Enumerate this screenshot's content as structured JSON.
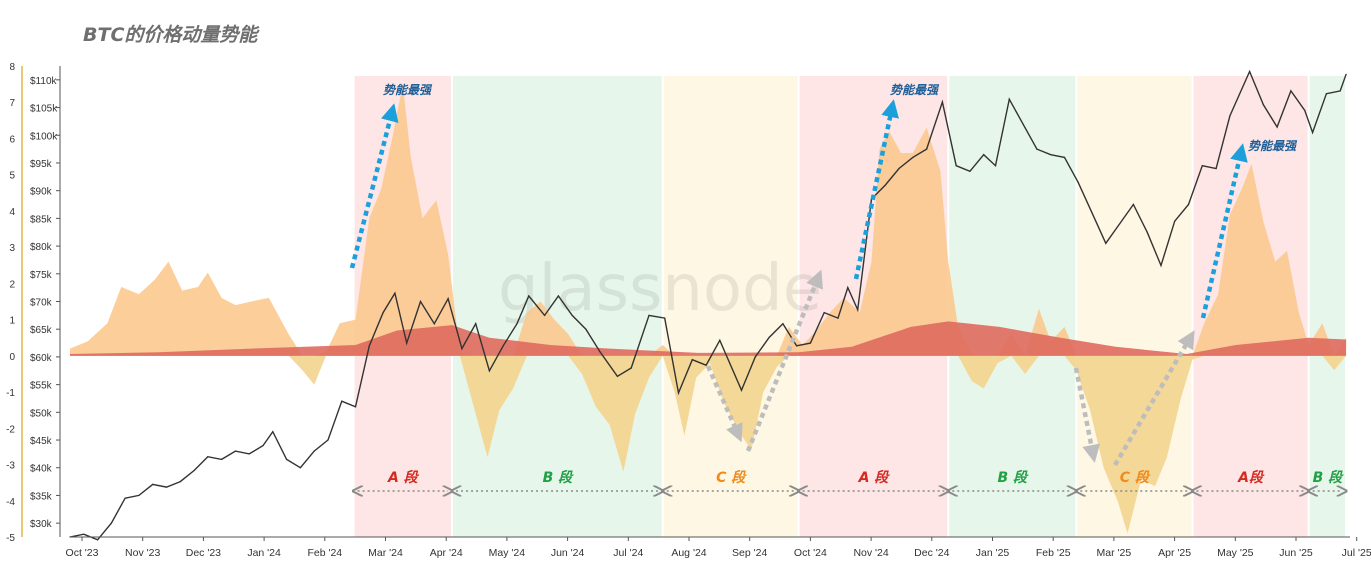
{
  "title": "BTC的价格动量势能",
  "watermark": "glassnode",
  "colors": {
    "price_line": "#333333",
    "momentum_positive_fill": "#fbc98f",
    "momentum_negative_fill": "#f3d48e",
    "baseline_fill": "#df6a5e",
    "phase_A_bg": "#fde6e5",
    "phase_B_bg": "#e7f6ea",
    "phase_C_bg": "#fef7e3",
    "label_A": "#d42a20",
    "label_B": "#21a045",
    "label_C": "#ef8a1b",
    "arrow_up": "#1ba0dc",
    "arrow_gray": "#bdbdbd",
    "annotation_text": "#1f5f99",
    "right_axis_tick": "#e8c97a"
  },
  "chart_data": {
    "type": "area",
    "x_ticks": [
      "Oct '23",
      "Nov '23",
      "Dec '23",
      "Jan '24",
      "Feb '24",
      "Mar '24",
      "Apr '24",
      "May '24",
      "Jun '24",
      "Jul '24",
      "Aug '24",
      "Sep '24",
      "Oct '24",
      "Nov '24",
      "Dec '24",
      "Jan '25",
      "Feb '25",
      "Mar '25",
      "Apr '25",
      "May '25",
      "Jun '25",
      "Jul '25"
    ],
    "y_left_ticks": [
      "8",
      "7",
      "6",
      "5",
      "4",
      "3",
      "2",
      "1",
      "0",
      "-1",
      "-2",
      "-3",
      "-4",
      "-5"
    ],
    "y_left_range": [
      -5,
      8
    ],
    "y_right_ticks": [
      "$110k",
      "$105k",
      "$100k",
      "$95k",
      "$90k",
      "$85k",
      "$80k",
      "$75k",
      "$70k",
      "$65k",
      "$60k",
      "$55k",
      "$50k",
      "$45k",
      "$40k",
      "$35k",
      "$30k"
    ],
    "y_right_range": [
      27500,
      112500
    ],
    "annotations": [
      "势能最强",
      "势能最强",
      "势能最强"
    ],
    "phases": [
      {
        "label": "A 段",
        "type": "A",
        "start": "2024-02-22",
        "end": "2024-04-12"
      },
      {
        "label": "B 段",
        "type": "B",
        "start": "2024-04-12",
        "end": "2024-07-28"
      },
      {
        "label": "C 段",
        "type": "C",
        "start": "2024-07-28",
        "end": "2024-10-05"
      },
      {
        "label": "A 段",
        "type": "A",
        "start": "2024-10-05",
        "end": "2024-12-20"
      },
      {
        "label": "B 段",
        "type": "B",
        "start": "2024-12-20",
        "end": "2025-02-23"
      },
      {
        "label": "C 段",
        "type": "C",
        "start": "2025-02-23",
        "end": "2025-04-23"
      },
      {
        "label": "A段",
        "type": "A",
        "start": "2025-04-23",
        "end": "2025-06-21"
      },
      {
        "label": "B 段",
        "type": "B",
        "start": "2025-06-21",
        "end": "2025-07-10"
      }
    ],
    "series": [
      {
        "name": "BTC Price",
        "axis": "right",
        "points": [
          [
            "2023-10-01",
            27500
          ],
          [
            "2023-10-08",
            28000
          ],
          [
            "2023-10-15",
            27000
          ],
          [
            "2023-10-22",
            30000
          ],
          [
            "2023-10-29",
            34500
          ],
          [
            "2023-11-05",
            35000
          ],
          [
            "2023-11-12",
            37000
          ],
          [
            "2023-11-19",
            36500
          ],
          [
            "2023-11-26",
            37500
          ],
          [
            "2023-12-03",
            39500
          ],
          [
            "2023-12-10",
            42000
          ],
          [
            "2023-12-17",
            41500
          ],
          [
            "2023-12-24",
            43000
          ],
          [
            "2023-12-31",
            42500
          ],
          [
            "2024-01-07",
            44000
          ],
          [
            "2024-01-12",
            46500
          ],
          [
            "2024-01-19",
            41500
          ],
          [
            "2024-01-26",
            40000
          ],
          [
            "2024-02-02",
            43000
          ],
          [
            "2024-02-09",
            45000
          ],
          [
            "2024-02-16",
            52000
          ],
          [
            "2024-02-23",
            51000
          ],
          [
            "2024-03-01",
            62000
          ],
          [
            "2024-03-08",
            68000
          ],
          [
            "2024-03-14",
            71500
          ],
          [
            "2024-03-20",
            62500
          ],
          [
            "2024-03-27",
            70000
          ],
          [
            "2024-04-03",
            66000
          ],
          [
            "2024-04-10",
            70500
          ],
          [
            "2024-04-17",
            61500
          ],
          [
            "2024-04-24",
            66000
          ],
          [
            "2024-05-01",
            57500
          ],
          [
            "2024-05-08",
            62000
          ],
          [
            "2024-05-15",
            66000
          ],
          [
            "2024-05-21",
            71000
          ],
          [
            "2024-05-29",
            67500
          ],
          [
            "2024-06-05",
            71000
          ],
          [
            "2024-06-12",
            67500
          ],
          [
            "2024-06-19",
            65000
          ],
          [
            "2024-06-26",
            61000
          ],
          [
            "2024-07-05",
            56500
          ],
          [
            "2024-07-12",
            58000
          ],
          [
            "2024-07-21",
            67500
          ],
          [
            "2024-07-29",
            67000
          ],
          [
            "2024-08-05",
            53500
          ],
          [
            "2024-08-12",
            59500
          ],
          [
            "2024-08-19",
            58500
          ],
          [
            "2024-08-26",
            63000
          ],
          [
            "2024-09-06",
            54000
          ],
          [
            "2024-09-13",
            60000
          ],
          [
            "2024-09-20",
            63500
          ],
          [
            "2024-09-27",
            66000
          ],
          [
            "2024-10-04",
            62000
          ],
          [
            "2024-10-11",
            62500
          ],
          [
            "2024-10-18",
            68000
          ],
          [
            "2024-10-25",
            67000
          ],
          [
            "2024-10-30",
            72500
          ],
          [
            "2024-11-04",
            68500
          ],
          [
            "2024-11-11",
            88500
          ],
          [
            "2024-11-18",
            91000
          ],
          [
            "2024-11-25",
            94000
          ],
          [
            "2024-12-02",
            96000
          ],
          [
            "2024-12-09",
            97500
          ],
          [
            "2024-12-17",
            106000
          ],
          [
            "2024-12-24",
            94500
          ],
          [
            "2024-12-31",
            93500
          ],
          [
            "2025-01-07",
            96500
          ],
          [
            "2025-01-13",
            94500
          ],
          [
            "2025-01-20",
            106500
          ],
          [
            "2025-01-27",
            102000
          ],
          [
            "2025-02-03",
            97500
          ],
          [
            "2025-02-10",
            96500
          ],
          [
            "2025-02-17",
            96000
          ],
          [
            "2025-02-24",
            91500
          ],
          [
            "2025-03-03",
            86000
          ],
          [
            "2025-03-10",
            80500
          ],
          [
            "2025-03-17",
            84000
          ],
          [
            "2025-03-24",
            87500
          ],
          [
            "2025-03-31",
            82500
          ],
          [
            "2025-04-07",
            76500
          ],
          [
            "2025-04-14",
            84500
          ],
          [
            "2025-04-21",
            87500
          ],
          [
            "2025-04-28",
            94500
          ],
          [
            "2025-05-05",
            94000
          ],
          [
            "2025-05-12",
            103500
          ],
          [
            "2025-05-22",
            111500
          ],
          [
            "2025-05-29",
            105500
          ],
          [
            "2025-06-05",
            101500
          ],
          [
            "2025-06-12",
            108000
          ],
          [
            "2025-06-19",
            104500
          ],
          [
            "2025-06-23",
            100500
          ],
          [
            "2025-06-30",
            107500
          ],
          [
            "2025-07-07",
            108000
          ],
          [
            "2025-07-10",
            111000
          ]
        ]
      },
      {
        "name": "Momentum",
        "axis": "left",
        "points": [
          [
            "2023-10-01",
            0.2
          ],
          [
            "2023-10-10",
            0.4
          ],
          [
            "2023-10-20",
            0.9
          ],
          [
            "2023-10-27",
            1.9
          ],
          [
            "2023-11-05",
            1.7
          ],
          [
            "2023-11-13",
            2.1
          ],
          [
            "2023-11-20",
            2.6
          ],
          [
            "2023-11-27",
            1.8
          ],
          [
            "2023-12-05",
            1.9
          ],
          [
            "2023-12-10",
            2.3
          ],
          [
            "2023-12-17",
            1.6
          ],
          [
            "2023-12-24",
            1.4
          ],
          [
            "2024-01-01",
            1.5
          ],
          [
            "2024-01-10",
            1.6
          ],
          [
            "2024-01-20",
            0.6
          ],
          [
            "2024-01-27",
            -0.4
          ],
          [
            "2024-02-02",
            -0.8
          ],
          [
            "2024-02-08",
            0.1
          ],
          [
            "2024-02-15",
            0.9
          ],
          [
            "2024-02-23",
            1.0
          ],
          [
            "2024-03-01",
            3.8
          ],
          [
            "2024-03-07",
            4.6
          ],
          [
            "2024-03-13",
            6.1
          ],
          [
            "2024-03-18",
            7.5
          ],
          [
            "2024-03-22",
            5.5
          ],
          [
            "2024-03-28",
            3.8
          ],
          [
            "2024-04-04",
            4.3
          ],
          [
            "2024-04-10",
            2.8
          ],
          [
            "2024-04-16",
            0.1
          ],
          [
            "2024-04-22",
            -1.2
          ],
          [
            "2024-04-30",
            -2.8
          ],
          [
            "2024-05-06",
            -1.5
          ],
          [
            "2024-05-13",
            -0.9
          ],
          [
            "2024-05-20",
            1.2
          ],
          [
            "2024-05-27",
            1.5
          ],
          [
            "2024-06-03",
            1.0
          ],
          [
            "2024-06-10",
            0.6
          ],
          [
            "2024-06-17",
            -0.5
          ],
          [
            "2024-06-24",
            -1.4
          ],
          [
            "2024-07-01",
            -1.9
          ],
          [
            "2024-07-08",
            -3.2
          ],
          [
            "2024-07-14",
            -1.6
          ],
          [
            "2024-07-21",
            -0.6
          ],
          [
            "2024-07-28",
            0.3
          ],
          [
            "2024-08-03",
            -1.0
          ],
          [
            "2024-08-08",
            -2.2
          ],
          [
            "2024-08-14",
            -0.6
          ],
          [
            "2024-08-21",
            -0.2
          ],
          [
            "2024-08-28",
            -1.3
          ],
          [
            "2024-09-06",
            -2.2
          ],
          [
            "2024-09-11",
            -2.6
          ],
          [
            "2024-09-17",
            -1.0
          ],
          [
            "2024-09-24",
            -0.3
          ],
          [
            "2024-09-30",
            0.8
          ],
          [
            "2024-10-07",
            0.3
          ],
          [
            "2024-10-14",
            0.7
          ],
          [
            "2024-10-21",
            1.2
          ],
          [
            "2024-10-28",
            1.6
          ],
          [
            "2024-11-05",
            1.2
          ],
          [
            "2024-11-11",
            2.6
          ],
          [
            "2024-11-15",
            5.7
          ],
          [
            "2024-11-20",
            6.2
          ],
          [
            "2024-11-26",
            5.6
          ],
          [
            "2024-12-02",
            5.6
          ],
          [
            "2024-12-09",
            6.3
          ],
          [
            "2024-12-16",
            5.1
          ],
          [
            "2024-12-20",
            2.6
          ],
          [
            "2024-12-25",
            0.8
          ],
          [
            "2025-01-01",
            -0.7
          ],
          [
            "2025-01-07",
            -0.9
          ],
          [
            "2025-01-14",
            -0.2
          ],
          [
            "2025-01-21",
            0.6
          ],
          [
            "2025-01-28",
            -0.5
          ],
          [
            "2025-02-04",
            1.3
          ],
          [
            "2025-02-10",
            0.4
          ],
          [
            "2025-02-17",
            0.8
          ],
          [
            "2025-02-23",
            -0.4
          ],
          [
            "2025-03-02",
            -1.5
          ],
          [
            "2025-03-09",
            -3.1
          ],
          [
            "2025-03-16",
            -4.0
          ],
          [
            "2025-03-21",
            -4.9
          ],
          [
            "2025-03-28",
            -3.4
          ],
          [
            "2025-04-04",
            -3.6
          ],
          [
            "2025-04-10",
            -2.8
          ],
          [
            "2025-04-17",
            -1.2
          ],
          [
            "2025-04-23",
            -0.1
          ],
          [
            "2025-04-29",
            0.9
          ],
          [
            "2025-05-06",
            1.7
          ],
          [
            "2025-05-12",
            3.9
          ],
          [
            "2025-05-18",
            4.6
          ],
          [
            "2025-05-23",
            5.3
          ],
          [
            "2025-05-29",
            3.7
          ],
          [
            "2025-06-04",
            2.6
          ],
          [
            "2025-06-10",
            2.9
          ],
          [
            "2025-06-16",
            1.2
          ],
          [
            "2025-06-21",
            0.3
          ],
          [
            "2025-06-28",
            0.9
          ],
          [
            "2025-07-04",
            -0.4
          ],
          [
            "2025-07-10",
            0.5
          ]
        ]
      },
      {
        "name": "Baseline",
        "axis": "left",
        "points": [
          [
            "2023-10-01",
            0.05
          ],
          [
            "2023-11-15",
            0.1
          ],
          [
            "2024-01-01",
            0.2
          ],
          [
            "2024-02-23",
            0.3
          ],
          [
            "2024-03-15",
            0.7
          ],
          [
            "2024-04-12",
            0.85
          ],
          [
            "2024-05-01",
            0.5
          ],
          [
            "2024-06-01",
            0.3
          ],
          [
            "2024-07-01",
            0.2
          ],
          [
            "2024-08-15",
            0.08
          ],
          [
            "2024-10-05",
            0.1
          ],
          [
            "2024-11-01",
            0.25
          ],
          [
            "2024-12-01",
            0.8
          ],
          [
            "2024-12-20",
            0.95
          ],
          [
            "2025-01-15",
            0.8
          ],
          [
            "2025-02-15",
            0.5
          ],
          [
            "2025-03-15",
            0.25
          ],
          [
            "2025-04-20",
            0.05
          ],
          [
            "2025-05-15",
            0.3
          ],
          [
            "2025-06-21",
            0.5
          ],
          [
            "2025-07-10",
            0.45
          ]
        ]
      }
    ]
  }
}
